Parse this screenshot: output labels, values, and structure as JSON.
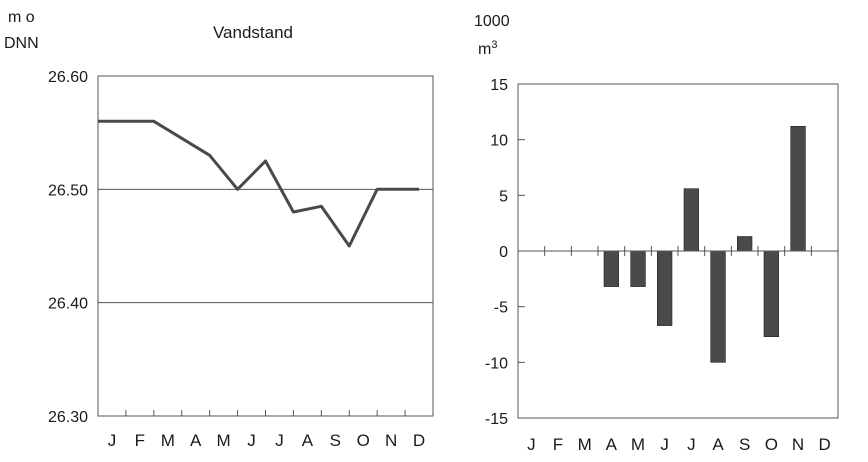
{
  "chart_data": [
    {
      "type": "line",
      "title": "Vandstand",
      "ylabel": "m o\nDNN",
      "ylabel_lines": [
        "m o",
        "DNN"
      ],
      "categories": [
        "J",
        "F",
        "M",
        "A",
        "M",
        "J",
        "J",
        "A",
        "S",
        "O",
        "N",
        "D"
      ],
      "yticks": [
        "26.30",
        "26.40",
        "26.50",
        "26.60"
      ],
      "ylim": [
        26.3,
        26.6
      ],
      "grid": "horizontal",
      "series": [
        {
          "values": [
            26.56,
            26.56,
            26.56,
            26.545,
            26.53,
            26.5,
            26.525,
            26.48,
            26.485,
            26.45,
            26.5,
            26.5
          ]
        }
      ],
      "line_color": "#4a4a4a"
    },
    {
      "type": "bar",
      "title": "",
      "ylabel": "1000 m3",
      "ylabel_lines": [
        "1000",
        "m"
      ],
      "ylabel_sup": "3",
      "categories": [
        "J",
        "F",
        "M",
        "A",
        "M",
        "J",
        "J",
        "A",
        "S",
        "O",
        "N",
        "D"
      ],
      "yticks": [
        "15",
        "10",
        "5",
        "0",
        "-5",
        "-10",
        "-15"
      ],
      "ylim": [
        -15,
        15
      ],
      "grid": "none",
      "values": [
        0,
        0,
        0,
        -3.2,
        -3.2,
        -6.7,
        5.6,
        -10.0,
        1.3,
        -7.7,
        11.2,
        0
      ],
      "bar_color": "#4a4a4a"
    }
  ]
}
